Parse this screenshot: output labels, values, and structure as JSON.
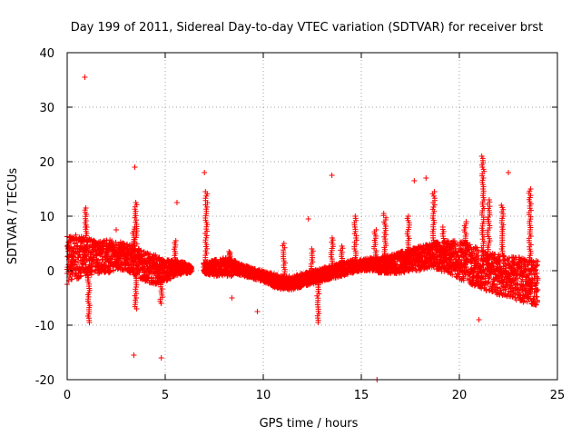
{
  "chart_data": {
    "type": "scatter",
    "title": "Day 199 of 2011, Sidereal Day-to-day VTEC variation (SDTVAR) for receiver brst",
    "xlabel": "GPS time / hours",
    "ylabel": "SDTVAR / TECUs",
    "xlim": [
      0,
      25
    ],
    "ylim": [
      -20,
      40
    ],
    "xticks": [
      0,
      5,
      10,
      15,
      20,
      25
    ],
    "yticks": [
      -20,
      -10,
      0,
      10,
      20,
      30,
      40
    ],
    "xtick_labels": [
      "0",
      "5",
      "10",
      "15",
      "20",
      "25"
    ],
    "ytick_labels": [
      "-20",
      "-10",
      "0",
      "10",
      "20",
      "30",
      "40"
    ],
    "grid": true,
    "marker": "+",
    "color": "#ff0000",
    "series": [
      {
        "name": "SDTVAR",
        "band": [
          {
            "x": 0.0,
            "lo": -2.5,
            "hi": 7.0
          },
          {
            "x": 0.5,
            "lo": -1.5,
            "hi": 6.5
          },
          {
            "x": 1.0,
            "lo": -1.0,
            "hi": 6.0
          },
          {
            "x": 1.5,
            "lo": -0.5,
            "hi": 5.5
          },
          {
            "x": 2.0,
            "lo": -0.5,
            "hi": 5.8
          },
          {
            "x": 2.5,
            "lo": 0.0,
            "hi": 5.5
          },
          {
            "x": 3.0,
            "lo": 0.0,
            "hi": 5.0
          },
          {
            "x": 3.5,
            "lo": -1.0,
            "hi": 4.5
          },
          {
            "x": 4.0,
            "lo": -2.0,
            "hi": 3.5
          },
          {
            "x": 4.5,
            "lo": -2.5,
            "hi": 3.0
          },
          {
            "x": 5.0,
            "lo": -2.0,
            "hi": 2.0
          },
          {
            "x": 5.5,
            "lo": -1.0,
            "hi": 2.0
          },
          {
            "x": 6.0,
            "lo": -0.5,
            "hi": 1.5
          },
          {
            "x": 6.3,
            "lo": -0.5,
            "hi": 1.0
          },
          {
            "x": 7.0,
            "lo": -0.5,
            "hi": 1.5
          },
          {
            "x": 7.5,
            "lo": -1.0,
            "hi": 2.0
          },
          {
            "x": 8.0,
            "lo": -1.0,
            "hi": 2.5
          },
          {
            "x": 8.5,
            "lo": -1.0,
            "hi": 2.0
          },
          {
            "x": 9.0,
            "lo": -1.0,
            "hi": 1.0
          },
          {
            "x": 9.5,
            "lo": -1.5,
            "hi": 0.5
          },
          {
            "x": 10.0,
            "lo": -2.0,
            "hi": 0.0
          },
          {
            "x": 10.5,
            "lo": -3.0,
            "hi": -0.5
          },
          {
            "x": 11.0,
            "lo": -3.5,
            "hi": -1.0
          },
          {
            "x": 11.5,
            "lo": -3.5,
            "hi": -1.0
          },
          {
            "x": 12.0,
            "lo": -3.0,
            "hi": -0.5
          },
          {
            "x": 12.5,
            "lo": -2.5,
            "hi": 0.0
          },
          {
            "x": 13.0,
            "lo": -2.0,
            "hi": 0.5
          },
          {
            "x": 13.5,
            "lo": -1.5,
            "hi": 1.0
          },
          {
            "x": 14.0,
            "lo": -1.0,
            "hi": 1.5
          },
          {
            "x": 14.5,
            "lo": -0.5,
            "hi": 2.0
          },
          {
            "x": 15.0,
            "lo": 0.0,
            "hi": 2.0
          },
          {
            "x": 15.5,
            "lo": 0.0,
            "hi": 2.5
          },
          {
            "x": 16.0,
            "lo": -0.5,
            "hi": 2.5
          },
          {
            "x": 16.5,
            "lo": -0.5,
            "hi": 3.0
          },
          {
            "x": 17.0,
            "lo": -0.5,
            "hi": 3.5
          },
          {
            "x": 17.5,
            "lo": 0.0,
            "hi": 4.0
          },
          {
            "x": 18.0,
            "lo": 0.0,
            "hi": 4.5
          },
          {
            "x": 18.5,
            "lo": 0.5,
            "hi": 5.0
          },
          {
            "x": 19.0,
            "lo": 0.0,
            "hi": 5.5
          },
          {
            "x": 19.5,
            "lo": -0.5,
            "hi": 5.5
          },
          {
            "x": 20.0,
            "lo": -1.5,
            "hi": 5.5
          },
          {
            "x": 20.5,
            "lo": -2.5,
            "hi": 5.0
          },
          {
            "x": 21.0,
            "lo": -3.0,
            "hi": 4.0
          },
          {
            "x": 21.5,
            "lo": -4.0,
            "hi": 3.5
          },
          {
            "x": 22.0,
            "lo": -4.5,
            "hi": 3.0
          },
          {
            "x": 22.5,
            "lo": -5.0,
            "hi": 2.5
          },
          {
            "x": 23.0,
            "lo": -5.5,
            "hi": 2.5
          },
          {
            "x": 23.5,
            "lo": -6.0,
            "hi": 2.0
          },
          {
            "x": 24.0,
            "lo": -6.5,
            "hi": 2.0
          }
        ],
        "spikes": [
          {
            "x": 0.95,
            "y": 11.5
          },
          {
            "x": 1.1,
            "y": -9.5
          },
          {
            "x": 3.5,
            "y": 12.5
          },
          {
            "x": 3.4,
            "y": 8.0
          },
          {
            "x": 3.5,
            "y": -7.0
          },
          {
            "x": 4.8,
            "y": -6.0
          },
          {
            "x": 5.5,
            "y": 5.5
          },
          {
            "x": 7.1,
            "y": 14.5
          },
          {
            "x": 8.3,
            "y": 3.5
          },
          {
            "x": 11.05,
            "y": 5.0
          },
          {
            "x": 12.5,
            "y": 4.0
          },
          {
            "x": 12.8,
            "y": -9.5
          },
          {
            "x": 13.5,
            "y": 6.0
          },
          {
            "x": 14.0,
            "y": 4.5
          },
          {
            "x": 14.7,
            "y": 10.0
          },
          {
            "x": 15.7,
            "y": 7.5
          },
          {
            "x": 16.2,
            "y": 10.5
          },
          {
            "x": 17.4,
            "y": 10.0
          },
          {
            "x": 18.7,
            "y": 14.5
          },
          {
            "x": 19.2,
            "y": 8.0
          },
          {
            "x": 20.3,
            "y": 9.0
          },
          {
            "x": 21.2,
            "y": 21.0
          },
          {
            "x": 21.5,
            "y": 13.0
          },
          {
            "x": 22.2,
            "y": 12.0
          },
          {
            "x": 23.6,
            "y": 15.0
          }
        ],
        "outliers": [
          {
            "x": 0.9,
            "y": 35.5
          },
          {
            "x": 3.45,
            "y": 19.0
          },
          {
            "x": 7.0,
            "y": 18.0
          },
          {
            "x": 13.5,
            "y": 17.5
          },
          {
            "x": 12.3,
            "y": 9.5
          },
          {
            "x": 15.8,
            "y": -20.0
          },
          {
            "x": 3.4,
            "y": -15.5
          },
          {
            "x": 4.8,
            "y": -16.0
          },
          {
            "x": 9.7,
            "y": -7.5
          },
          {
            "x": 8.4,
            "y": -5.0
          },
          {
            "x": 21.0,
            "y": -9.0
          },
          {
            "x": 22.5,
            "y": 18.0
          },
          {
            "x": 17.7,
            "y": 16.5
          },
          {
            "x": 18.3,
            "y": 17.0
          },
          {
            "x": 5.6,
            "y": 12.5
          },
          {
            "x": 1.0,
            "y": 8.0
          },
          {
            "x": 2.5,
            "y": 7.5
          }
        ]
      }
    ]
  }
}
